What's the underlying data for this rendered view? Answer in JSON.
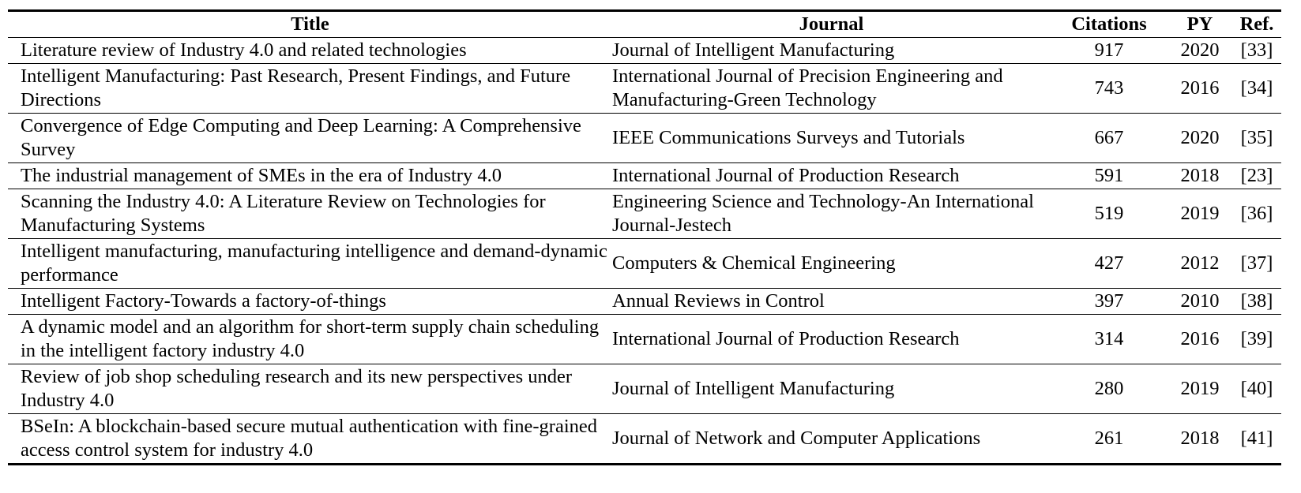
{
  "table": {
    "headers": {
      "title": "Title",
      "journal": "Journal",
      "citations": "Citations",
      "py": "PY",
      "ref": "Ref."
    },
    "rows": [
      {
        "title": "Literature review of Industry 4.0 and related technologies",
        "journal": "Journal of Intelligent Manufacturing",
        "citations": "917",
        "py": "2020",
        "ref": "[33]"
      },
      {
        "title": "Intelligent Manufacturing: Past Research, Present Findings, and Future Directions",
        "journal": "International Journal of Precision Engineering and Manufacturing-Green Technology",
        "citations": "743",
        "py": "2016",
        "ref": "[34]"
      },
      {
        "title": "Convergence of Edge Computing and Deep Learning: A Comprehensive Survey",
        "journal": "IEEE Communications Surveys and Tutorials",
        "citations": "667",
        "py": "2020",
        "ref": "[35]"
      },
      {
        "title": "The industrial management of SMEs in the era of Industry 4.0",
        "journal": "International Journal of Production Research",
        "citations": "591",
        "py": "2018",
        "ref": "[23]"
      },
      {
        "title": "Scanning the Industry 4.0: A Literature Review on Technologies for Manufacturing Systems",
        "journal": "Engineering Science and Technology-An International Journal-Jestech",
        "citations": "519",
        "py": "2019",
        "ref": "[36]"
      },
      {
        "title": "Intelligent manufacturing, manufacturing intelligence and demand-dynamic performance",
        "journal": "Computers & Chemical Engineering",
        "citations": "427",
        "py": "2012",
        "ref": "[37]"
      },
      {
        "title": "Intelligent Factory-Towards a factory-of-things",
        "journal": "Annual Reviews in Control",
        "citations": "397",
        "py": "2010",
        "ref": "[38]"
      },
      {
        "title": "A dynamic model and an algorithm for short-term supply chain scheduling in the intelligent factory industry 4.0",
        "journal": "International Journal of Production Research",
        "citations": "314",
        "py": "2016",
        "ref": "[39]"
      },
      {
        "title": "Review of job shop scheduling research and its new perspectives under Industry 4.0",
        "journal": "Journal of Intelligent Manufacturing",
        "citations": "280",
        "py": "2019",
        "ref": "[40]"
      },
      {
        "title": "BSeIn: A blockchain-based secure mutual authentication with fine-grained access control system for industry 4.0",
        "journal": "Journal of Network and Computer Applications",
        "citations": "261",
        "py": "2018",
        "ref": "[41]"
      }
    ]
  }
}
